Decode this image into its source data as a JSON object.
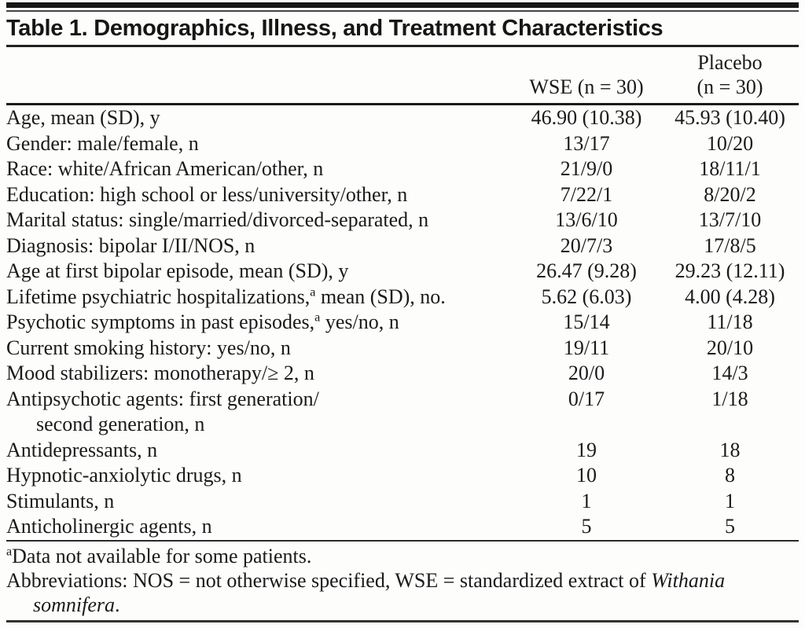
{
  "title": "Table 1. Demographics, Illness, and Treatment Characteristics",
  "columns": {
    "wse": "WSE (n = 30)",
    "placebo_line1": "Placebo",
    "placebo_line2": "(n = 30)"
  },
  "rows": [
    {
      "label": "Age, mean (SD), y",
      "wse": "46.90 (10.38)",
      "placebo": "45.93 (10.40)"
    },
    {
      "label": "Gender: male/female, n",
      "wse": "13/17",
      "placebo": "10/20"
    },
    {
      "label": "Race: white/African American/other, n",
      "wse": "21/9/0",
      "placebo": "18/11/1"
    },
    {
      "label": "Education: high school or less/university/other, n",
      "wse": "7/22/1",
      "placebo": "8/20/2"
    },
    {
      "label": "Marital status: single/married/divorced-separated, n",
      "wse": "13/6/10",
      "placebo": "13/7/10"
    },
    {
      "label": "Diagnosis: bipolar I/II/NOS, n",
      "wse": "20/7/3",
      "placebo": "17/8/5"
    },
    {
      "label": "Age at first bipolar episode, mean (SD), y",
      "wse": "26.47 (9.28)",
      "placebo": "29.23 (12.11)"
    },
    {
      "label": "Lifetime psychiatric hospitalizations,",
      "sup": "a",
      "label_end": " mean (SD), no.",
      "wse": "5.62 (6.03)",
      "placebo": "4.00 (4.28)"
    },
    {
      "label": "Psychotic symptoms in past episodes,",
      "sup": "a",
      "label_end": " yes/no, n",
      "wse": "15/14",
      "placebo": "11/18"
    },
    {
      "label": "Current smoking history: yes/no, n",
      "wse": "19/11",
      "placebo": "20/10"
    },
    {
      "label": "Mood stabilizers: monotherapy/≥ 2, n",
      "wse": "20/0",
      "placebo": "14/3"
    },
    {
      "label": "Antipsychotic agents: first generation/",
      "label2": "second generation, n",
      "wse": "0/17",
      "placebo": "1/18"
    },
    {
      "label": "Antidepressants, n",
      "wse": "19",
      "placebo": "18"
    },
    {
      "label": "Hypnotic-anxiolytic drugs, n",
      "wse": "10",
      "placebo": "8"
    },
    {
      "label": "Stimulants, n",
      "wse": "1",
      "placebo": "1"
    },
    {
      "label": "Anticholinergic agents, n",
      "wse": "5",
      "placebo": "5"
    }
  ],
  "footnotes": {
    "note1_sup": "a",
    "note1": "Data not available for some patients.",
    "note2": "Abbreviations: NOS = not otherwise specified, WSE = standardized extract of ",
    "note2_italic": "Withania somnifera",
    "note2_end": "."
  }
}
